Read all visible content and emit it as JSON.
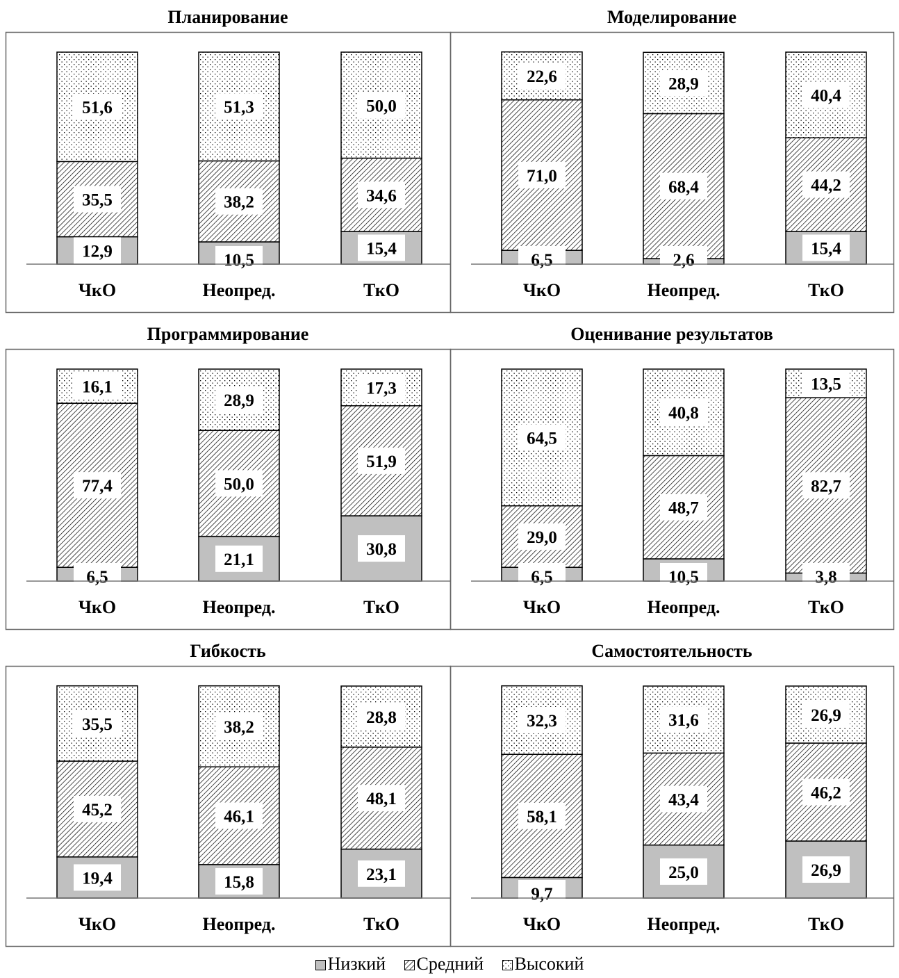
{
  "chart_data": [
    {
      "type": "bar",
      "stacked": true,
      "title": "Планирование",
      "categories": [
        "ЧкО",
        "Неопред.",
        "ТкО"
      ],
      "ylim": [
        0,
        100
      ],
      "series": [
        {
          "name": "Низкий",
          "values": [
            12.9,
            10.5,
            15.4
          ]
        },
        {
          "name": "Средний",
          "values": [
            35.5,
            38.2,
            34.6
          ]
        },
        {
          "name": "Высокий",
          "values": [
            51.6,
            51.3,
            50.0
          ]
        }
      ],
      "labels": {
        "Низкий": [
          "12,9",
          "10,5",
          "15,4"
        ],
        "Средний": [
          "35,5",
          "38,2",
          "34,6"
        ],
        "Высокий": [
          "51,6",
          "51,3",
          "50,0"
        ]
      }
    },
    {
      "type": "bar",
      "stacked": true,
      "title": "Моделирование",
      "categories": [
        "ЧкО",
        "Неопред.",
        "ТкО"
      ],
      "ylim": [
        0,
        100
      ],
      "series": [
        {
          "name": "Низкий",
          "values": [
            6.5,
            2.6,
            15.4
          ]
        },
        {
          "name": "Средний",
          "values": [
            71.0,
            68.4,
            44.2
          ]
        },
        {
          "name": "Высокий",
          "values": [
            22.6,
            28.9,
            40.4
          ]
        }
      ],
      "labels": {
        "Низкий": [
          "6,5",
          "2,6",
          "15,4"
        ],
        "Средний": [
          "71,0",
          "68,4",
          "44,2"
        ],
        "Высокий": [
          "22,6",
          "28,9",
          "40,4"
        ]
      }
    },
    {
      "type": "bar",
      "stacked": true,
      "title": "Программирование",
      "categories": [
        "ЧкО",
        "Неопред.",
        "ТкО"
      ],
      "ylim": [
        0,
        100
      ],
      "series": [
        {
          "name": "Низкий",
          "values": [
            6.5,
            21.1,
            30.8
          ]
        },
        {
          "name": "Средний",
          "values": [
            77.4,
            50.0,
            51.9
          ]
        },
        {
          "name": "Высокий",
          "values": [
            16.1,
            28.9,
            17.3
          ]
        }
      ],
      "labels": {
        "Низкий": [
          "6,5",
          "21,1",
          "30,8"
        ],
        "Средний": [
          "77,4",
          "50,0",
          "51,9"
        ],
        "Высокий": [
          "16,1",
          "28,9",
          "17,3"
        ]
      }
    },
    {
      "type": "bar",
      "stacked": true,
      "title": "Оценивание результатов",
      "categories": [
        "ЧкО",
        "Неопред.",
        "ТкО"
      ],
      "ylim": [
        0,
        100
      ],
      "series": [
        {
          "name": "Низкий",
          "values": [
            6.5,
            10.5,
            3.8
          ]
        },
        {
          "name": "Средний",
          "values": [
            29.0,
            48.7,
            82.7
          ]
        },
        {
          "name": "Высокий",
          "values": [
            64.5,
            40.8,
            13.5
          ]
        }
      ],
      "labels": {
        "Низкий": [
          "6,5",
          "10,5",
          "3,8"
        ],
        "Средний": [
          "29,0",
          "48,7",
          "82,7"
        ],
        "Высокий": [
          "64,5",
          "40,8",
          "13,5"
        ]
      }
    },
    {
      "type": "bar",
      "stacked": true,
      "title": "Гибкость",
      "categories": [
        "ЧкО",
        "Неопред.",
        "ТкО"
      ],
      "ylim": [
        0,
        100
      ],
      "series": [
        {
          "name": "Низкий",
          "values": [
            19.4,
            15.8,
            23.1
          ]
        },
        {
          "name": "Средний",
          "values": [
            45.2,
            46.1,
            48.1
          ]
        },
        {
          "name": "Высокий",
          "values": [
            35.5,
            38.2,
            28.8
          ]
        }
      ],
      "labels": {
        "Низкий": [
          "19,4",
          "15,8",
          "23,1"
        ],
        "Средний": [
          "45,2",
          "46,1",
          "48,1"
        ],
        "Высокий": [
          "35,5",
          "38,2",
          "28,8"
        ]
      }
    },
    {
      "type": "bar",
      "stacked": true,
      "title": "Самостоятельность",
      "categories": [
        "ЧкО",
        "Неопред.",
        "ТкО"
      ],
      "ylim": [
        0,
        100
      ],
      "series": [
        {
          "name": "Низкий",
          "values": [
            9.7,
            25.0,
            26.9
          ]
        },
        {
          "name": "Средний",
          "values": [
            58.1,
            43.4,
            46.2
          ]
        },
        {
          "name": "Высокий",
          "values": [
            32.3,
            31.6,
            26.9
          ]
        }
      ],
      "labels": {
        "Низкий": [
          "9,7",
          "25,0",
          "26,9"
        ],
        "Средний": [
          "58,1",
          "43,4",
          "46,2"
        ],
        "Высокий": [
          "32,3",
          "31,6",
          "26,9"
        ]
      }
    }
  ],
  "legend": {
    "items": [
      "Низкий",
      "Средний",
      "Высокий"
    ],
    "placement": "bottom"
  },
  "colors": {
    "low": "#c0c0c0",
    "hatch": "#000000",
    "background": "#ffffff"
  }
}
